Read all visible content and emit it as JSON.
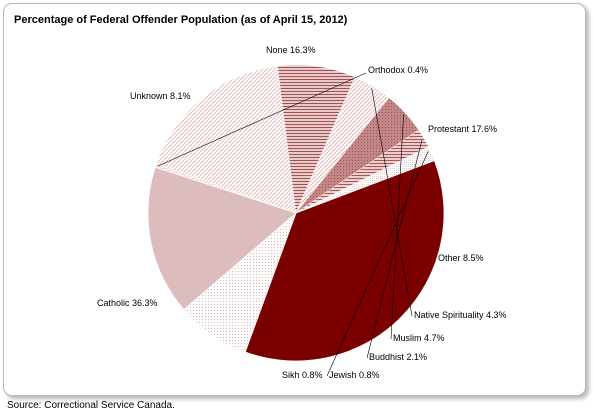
{
  "chart_data": {
    "type": "pie",
    "title": "Percentage of Federal Offender Population (as of April 15, 2012)",
    "slices": [
      {
        "label": "Orthodox",
        "value": 0.4,
        "value_label": "0.4%",
        "color": "#d08a8a"
      },
      {
        "label": "Protestant",
        "value": 17.6,
        "value_label": "17.6%",
        "color": "#f6efef"
      },
      {
        "label": "Other",
        "value": 8.5,
        "value_label": "8.5%",
        "color": "#c58c8c"
      },
      {
        "label": "Native Spirituality",
        "value": 4.3,
        "value_label": "4.3%",
        "color": "#f2e0e0"
      },
      {
        "label": "Muslim",
        "value": 4.7,
        "value_label": "4.7%",
        "color": "#c08080"
      },
      {
        "label": "Buddhist",
        "value": 2.1,
        "value_label": "2.1%",
        "color": "#d9a8a8"
      },
      {
        "label": "Jewish",
        "value": 0.8,
        "value_label": "0.8%",
        "color": "#f3e8e8"
      },
      {
        "label": "Sikh",
        "value": 0.8,
        "value_label": "0.8%",
        "color": "#eedcdc"
      },
      {
        "label": "Catholic",
        "value": 36.3,
        "value_label": "36.3%",
        "color": "#7a0000"
      },
      {
        "label": "Unknown",
        "value": 8.1,
        "value_label": "8.1%",
        "color": "#f1e6e6"
      },
      {
        "label": "None",
        "value": 16.3,
        "value_label": "16.3%",
        "color": "#dcbcbc"
      }
    ]
  },
  "source": "Source:  Correctional Service Canada."
}
